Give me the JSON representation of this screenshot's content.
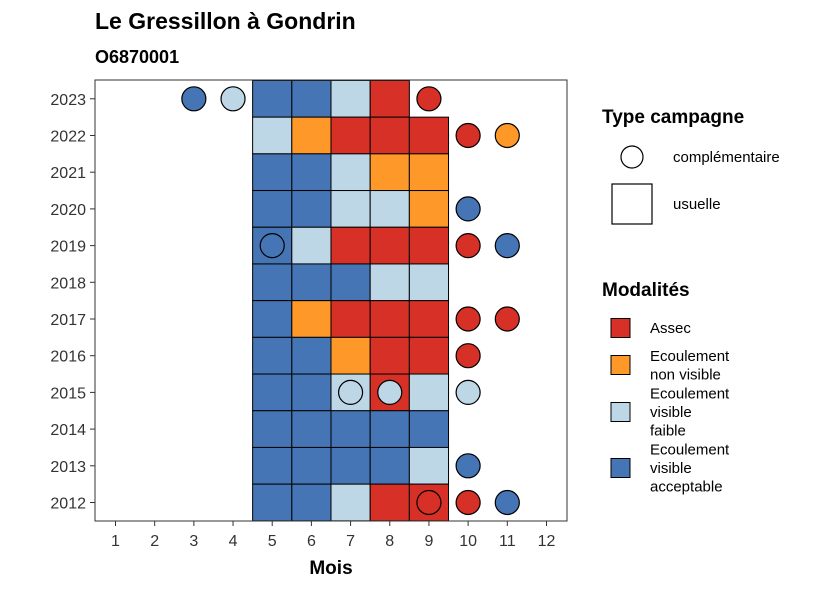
{
  "chart_data": {
    "type": "heatmap",
    "title": "Le Gressillon à Gondrin",
    "subtitle": "O6870001",
    "xlabel": "Mois",
    "x_ticks": [
      "1",
      "2",
      "3",
      "4",
      "5",
      "6",
      "7",
      "8",
      "9",
      "10",
      "11",
      "12"
    ],
    "y_ticks": [
      "2012",
      "2013",
      "2014",
      "2015",
      "2016",
      "2017",
      "2018",
      "2019",
      "2020",
      "2021",
      "2022",
      "2023"
    ],
    "grid": false,
    "legend_position": "right",
    "colors": {
      "Assec": "#d73027",
      "Ecoulement non visible": "#fe9929",
      "Ecoulement visible faible": "#bdd7e7",
      "Ecoulement visible acceptable": "#4575b4"
    },
    "legend_type": {
      "title": "Type campagne",
      "items": [
        {
          "label": "complémentaire",
          "shape": "circle"
        },
        {
          "label": "usuelle",
          "shape": "square"
        }
      ]
    },
    "legend_modalites": {
      "title": "Modalités",
      "items": [
        {
          "key": "Assec",
          "lines": [
            "Assec"
          ]
        },
        {
          "key": "Ecoulement non visible",
          "lines": [
            "Ecoulement",
            "non visible"
          ]
        },
        {
          "key": "Ecoulement visible faible",
          "lines": [
            "Ecoulement",
            "visible",
            "faible"
          ]
        },
        {
          "key": "Ecoulement visible acceptable",
          "lines": [
            "Ecoulement",
            "visible",
            "acceptable"
          ]
        }
      ]
    },
    "points": [
      {
        "year": 2023,
        "month": 3,
        "type": "complémentaire",
        "modalite": "Ecoulement visible acceptable"
      },
      {
        "year": 2023,
        "month": 4,
        "type": "complémentaire",
        "modalite": "Ecoulement visible faible"
      },
      {
        "year": 2023,
        "month": 5,
        "type": "usuelle",
        "modalite": "Ecoulement visible acceptable"
      },
      {
        "year": 2023,
        "month": 6,
        "type": "usuelle",
        "modalite": "Ecoulement visible acceptable"
      },
      {
        "year": 2023,
        "month": 7,
        "type": "usuelle",
        "modalite": "Ecoulement visible faible"
      },
      {
        "year": 2023,
        "month": 8,
        "type": "usuelle",
        "modalite": "Assec"
      },
      {
        "year": 2023,
        "month": 9,
        "type": "complémentaire",
        "modalite": "Assec"
      },
      {
        "year": 2022,
        "month": 5,
        "type": "usuelle",
        "modalite": "Ecoulement visible faible"
      },
      {
        "year": 2022,
        "month": 6,
        "type": "usuelle",
        "modalite": "Ecoulement non visible"
      },
      {
        "year": 2022,
        "month": 7,
        "type": "usuelle",
        "modalite": "Assec"
      },
      {
        "year": 2022,
        "month": 8,
        "type": "usuelle",
        "modalite": "Assec"
      },
      {
        "year": 2022,
        "month": 9,
        "type": "usuelle",
        "modalite": "Assec"
      },
      {
        "year": 2022,
        "month": 10,
        "type": "complémentaire",
        "modalite": "Assec"
      },
      {
        "year": 2022,
        "month": 11,
        "type": "complémentaire",
        "modalite": "Ecoulement non visible"
      },
      {
        "year": 2021,
        "month": 5,
        "type": "usuelle",
        "modalite": "Ecoulement visible acceptable"
      },
      {
        "year": 2021,
        "month": 6,
        "type": "usuelle",
        "modalite": "Ecoulement visible acceptable"
      },
      {
        "year": 2021,
        "month": 7,
        "type": "usuelle",
        "modalite": "Ecoulement visible faible"
      },
      {
        "year": 2021,
        "month": 8,
        "type": "usuelle",
        "modalite": "Ecoulement non visible"
      },
      {
        "year": 2021,
        "month": 9,
        "type": "usuelle",
        "modalite": "Ecoulement non visible"
      },
      {
        "year": 2020,
        "month": 5,
        "type": "usuelle",
        "modalite": "Ecoulement visible acceptable"
      },
      {
        "year": 2020,
        "month": 6,
        "type": "usuelle",
        "modalite": "Ecoulement visible acceptable"
      },
      {
        "year": 2020,
        "month": 7,
        "type": "usuelle",
        "modalite": "Ecoulement visible faible"
      },
      {
        "year": 2020,
        "month": 8,
        "type": "usuelle",
        "modalite": "Ecoulement visible faible"
      },
      {
        "year": 2020,
        "month": 9,
        "type": "usuelle",
        "modalite": "Ecoulement non visible"
      },
      {
        "year": 2020,
        "month": 10,
        "type": "complémentaire",
        "modalite": "Ecoulement visible acceptable"
      },
      {
        "year": 2019,
        "month": 5,
        "type": "usuelle",
        "modalite": "Ecoulement visible acceptable"
      },
      {
        "year": 2019,
        "month": 5,
        "type": "complémentaire",
        "modalite": "Ecoulement visible acceptable"
      },
      {
        "year": 2019,
        "month": 6,
        "type": "usuelle",
        "modalite": "Ecoulement visible faible"
      },
      {
        "year": 2019,
        "month": 7,
        "type": "usuelle",
        "modalite": "Assec"
      },
      {
        "year": 2019,
        "month": 8,
        "type": "usuelle",
        "modalite": "Assec"
      },
      {
        "year": 2019,
        "month": 9,
        "type": "usuelle",
        "modalite": "Assec"
      },
      {
        "year": 2019,
        "month": 10,
        "type": "complémentaire",
        "modalite": "Assec"
      },
      {
        "year": 2019,
        "month": 11,
        "type": "complémentaire",
        "modalite": "Ecoulement visible acceptable"
      },
      {
        "year": 2018,
        "month": 5,
        "type": "usuelle",
        "modalite": "Ecoulement visible acceptable"
      },
      {
        "year": 2018,
        "month": 6,
        "type": "usuelle",
        "modalite": "Ecoulement visible acceptable"
      },
      {
        "year": 2018,
        "month": 7,
        "type": "usuelle",
        "modalite": "Ecoulement visible acceptable"
      },
      {
        "year": 2018,
        "month": 8,
        "type": "usuelle",
        "modalite": "Ecoulement visible faible"
      },
      {
        "year": 2018,
        "month": 9,
        "type": "usuelle",
        "modalite": "Ecoulement visible faible"
      },
      {
        "year": 2017,
        "month": 5,
        "type": "usuelle",
        "modalite": "Ecoulement visible acceptable"
      },
      {
        "year": 2017,
        "month": 6,
        "type": "usuelle",
        "modalite": "Ecoulement non visible"
      },
      {
        "year": 2017,
        "month": 7,
        "type": "usuelle",
        "modalite": "Assec"
      },
      {
        "year": 2017,
        "month": 8,
        "type": "usuelle",
        "modalite": "Assec"
      },
      {
        "year": 2017,
        "month": 9,
        "type": "usuelle",
        "modalite": "Assec"
      },
      {
        "year": 2017,
        "month": 10,
        "type": "complémentaire",
        "modalite": "Assec"
      },
      {
        "year": 2017,
        "month": 11,
        "type": "complémentaire",
        "modalite": "Assec"
      },
      {
        "year": 2016,
        "month": 5,
        "type": "usuelle",
        "modalite": "Ecoulement visible acceptable"
      },
      {
        "year": 2016,
        "month": 6,
        "type": "usuelle",
        "modalite": "Ecoulement visible acceptable"
      },
      {
        "year": 2016,
        "month": 7,
        "type": "usuelle",
        "modalite": "Ecoulement non visible"
      },
      {
        "year": 2016,
        "month": 8,
        "type": "usuelle",
        "modalite": "Assec"
      },
      {
        "year": 2016,
        "month": 9,
        "type": "usuelle",
        "modalite": "Assec"
      },
      {
        "year": 2016,
        "month": 10,
        "type": "complémentaire",
        "modalite": "Assec"
      },
      {
        "year": 2015,
        "month": 5,
        "type": "usuelle",
        "modalite": "Ecoulement visible acceptable"
      },
      {
        "year": 2015,
        "month": 6,
        "type": "usuelle",
        "modalite": "Ecoulement visible acceptable"
      },
      {
        "year": 2015,
        "month": 7,
        "type": "usuelle",
        "modalite": "Ecoulement visible faible"
      },
      {
        "year": 2015,
        "month": 7,
        "type": "complémentaire",
        "modalite": "Ecoulement visible faible"
      },
      {
        "year": 2015,
        "month": 8,
        "type": "usuelle",
        "modalite": "Assec"
      },
      {
        "year": 2015,
        "month": 8,
        "type": "complémentaire",
        "modalite": "Ecoulement visible faible"
      },
      {
        "year": 2015,
        "month": 9,
        "type": "usuelle",
        "modalite": "Ecoulement visible faible"
      },
      {
        "year": 2015,
        "month": 10,
        "type": "complémentaire",
        "modalite": "Ecoulement visible faible"
      },
      {
        "year": 2014,
        "month": 5,
        "type": "usuelle",
        "modalite": "Ecoulement visible acceptable"
      },
      {
        "year": 2014,
        "month": 6,
        "type": "usuelle",
        "modalite": "Ecoulement visible acceptable"
      },
      {
        "year": 2014,
        "month": 7,
        "type": "usuelle",
        "modalite": "Ecoulement visible acceptable"
      },
      {
        "year": 2014,
        "month": 8,
        "type": "usuelle",
        "modalite": "Ecoulement visible acceptable"
      },
      {
        "year": 2014,
        "month": 9,
        "type": "usuelle",
        "modalite": "Ecoulement visible acceptable"
      },
      {
        "year": 2013,
        "month": 5,
        "type": "usuelle",
        "modalite": "Ecoulement visible acceptable"
      },
      {
        "year": 2013,
        "month": 6,
        "type": "usuelle",
        "modalite": "Ecoulement visible acceptable"
      },
      {
        "year": 2013,
        "month": 7,
        "type": "usuelle",
        "modalite": "Ecoulement visible acceptable"
      },
      {
        "year": 2013,
        "month": 8,
        "type": "usuelle",
        "modalite": "Ecoulement visible acceptable"
      },
      {
        "year": 2013,
        "month": 9,
        "type": "usuelle",
        "modalite": "Ecoulement visible faible"
      },
      {
        "year": 2013,
        "month": 10,
        "type": "complémentaire",
        "modalite": "Ecoulement visible acceptable"
      },
      {
        "year": 2012,
        "month": 5,
        "type": "usuelle",
        "modalite": "Ecoulement visible acceptable"
      },
      {
        "year": 2012,
        "month": 6,
        "type": "usuelle",
        "modalite": "Ecoulement visible acceptable"
      },
      {
        "year": 2012,
        "month": 7,
        "type": "usuelle",
        "modalite": "Ecoulement visible faible"
      },
      {
        "year": 2012,
        "month": 8,
        "type": "usuelle",
        "modalite": "Assec"
      },
      {
        "year": 2012,
        "month": 9,
        "type": "usuelle",
        "modalite": "Assec"
      },
      {
        "year": 2012,
        "month": 9,
        "type": "complémentaire",
        "modalite": "Assec"
      },
      {
        "year": 2012,
        "month": 10,
        "type": "complémentaire",
        "modalite": "Assec"
      },
      {
        "year": 2012,
        "month": 11,
        "type": "complémentaire",
        "modalite": "Ecoulement visible acceptable"
      }
    ]
  }
}
